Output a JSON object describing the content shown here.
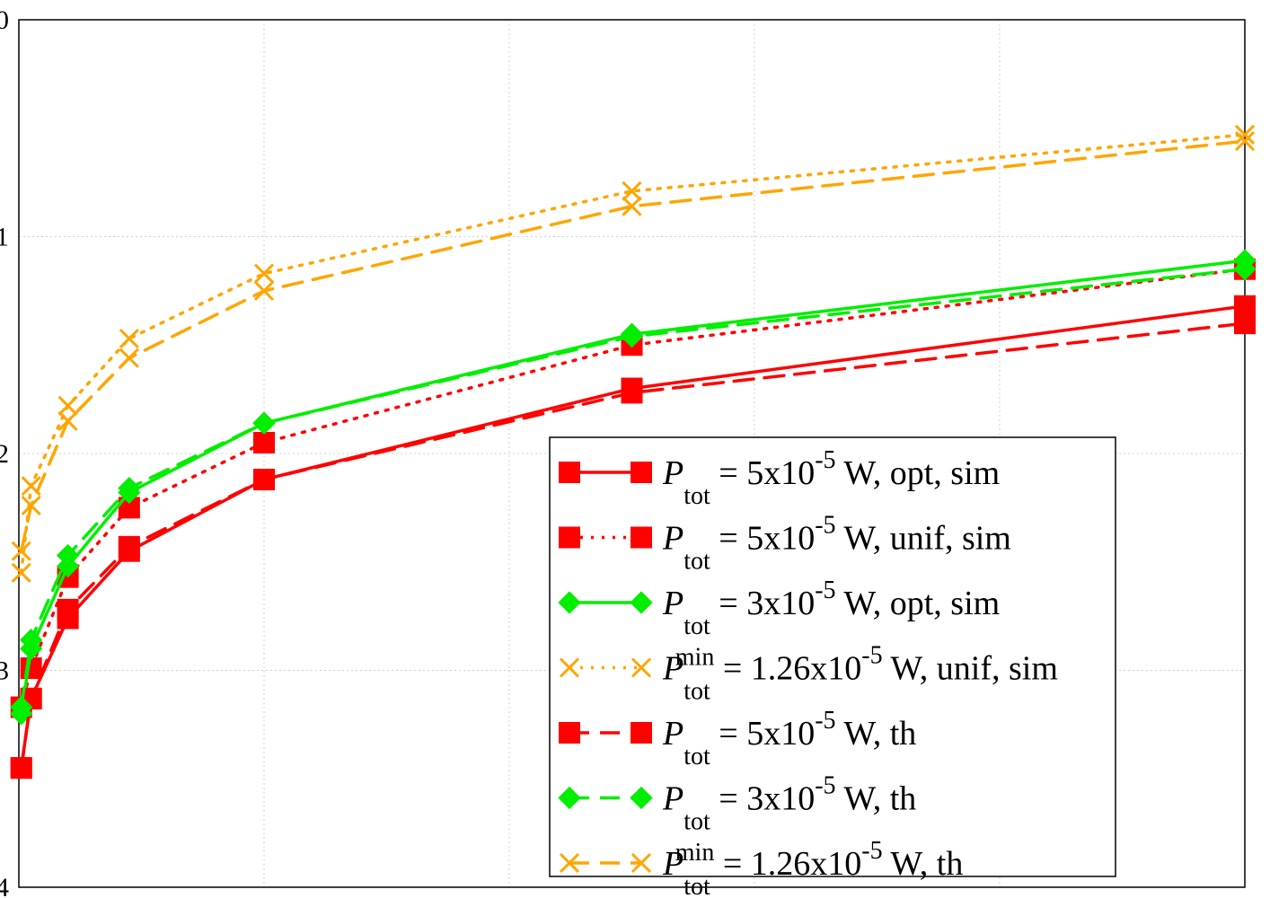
{
  "chart_data": {
    "type": "line",
    "title": "",
    "xlabel": "",
    "ylabel": "",
    "xlim": [
      0,
      100
    ],
    "ylim": [
      -4,
      0
    ],
    "grid": true,
    "legend_position": "bottom-right",
    "y_tick_labels": [
      "0",
      "1",
      "2",
      "3",
      "4"
    ],
    "y_tick_values": [
      0,
      -1,
      -2,
      -3,
      -4
    ],
    "x_ticks": [
      0,
      20,
      40,
      60,
      80,
      100
    ],
    "x": [
      0.2,
      1,
      4,
      9,
      20,
      50,
      100
    ],
    "series": [
      {
        "name": "P_tot = 5x10^-5 W, opt, sim",
        "legend_main": "P",
        "legend_sub": "tot",
        "legend_sup": "",
        "legend_eq": " = 5x10",
        "legend_exp": "-5",
        "legend_tail": " W, opt, sim",
        "color": "#ff0000",
        "dash": "solid",
        "marker": "square",
        "values": [
          -3.45,
          -3.13,
          -2.76,
          -2.45,
          -2.12,
          -1.7,
          -1.32
        ]
      },
      {
        "name": "P_tot = 5x10^-5 W, unif, sim",
        "legend_main": "P",
        "legend_sub": "tot",
        "legend_sup": "",
        "legend_eq": " = 5x10",
        "legend_exp": "-5",
        "legend_tail": " W, unif, sim",
        "color": "#ff0000",
        "dash": "dotted",
        "marker": "square",
        "values": [
          -3.17,
          -2.99,
          -2.57,
          -2.25,
          -1.95,
          -1.5,
          -1.15
        ]
      },
      {
        "name": "P_tot = 3x10^-5 W, opt, sim",
        "legend_main": "P",
        "legend_sub": "tot",
        "legend_sup": "",
        "legend_eq": " = 3x10",
        "legend_exp": "-5",
        "legend_tail": " W, opt, sim",
        "color": "#00ee00",
        "dash": "solid",
        "marker": "diamond",
        "values": [
          -3.2,
          -2.9,
          -2.52,
          -2.18,
          -1.86,
          -1.45,
          -1.11
        ]
      },
      {
        "name": "P_tot^min = 1.26x10^-5 W, unif, sim",
        "legend_main": "P",
        "legend_sub": "tot",
        "legend_sup": "min",
        "legend_eq": " = 1.26x10",
        "legend_exp": "-5",
        "legend_tail": " W, unif, sim",
        "color": "#ffa500",
        "dash": "dotted",
        "marker": "x",
        "values": [
          -2.55,
          -2.15,
          -1.78,
          -1.47,
          -1.17,
          -0.79,
          -0.53
        ]
      },
      {
        "name": "P_tot = 5x10^-5 W, th",
        "legend_main": "P",
        "legend_sub": "tot",
        "legend_sup": "",
        "legend_eq": " = 5x10",
        "legend_exp": "-5",
        "legend_tail": " W, th",
        "color": "#ff0000",
        "dash": "dashed",
        "marker": "square",
        "values": [
          -3.45,
          -3.13,
          -2.72,
          -2.43,
          -2.12,
          -1.72,
          -1.4
        ]
      },
      {
        "name": "P_tot = 3x10^-5 W, th",
        "legend_main": "P",
        "legend_sub": "tot",
        "legend_sup": "",
        "legend_eq": " = 3x10",
        "legend_exp": "-5",
        "legend_tail": " W, th",
        "color": "#00ee00",
        "dash": "dashed",
        "marker": "diamond",
        "values": [
          -3.17,
          -2.86,
          -2.47,
          -2.16,
          -1.86,
          -1.46,
          -1.15
        ]
      },
      {
        "name": "P_tot^min = 1.26x10^-5 W, th",
        "legend_main": "P",
        "legend_sub": "tot",
        "legend_sup": "min",
        "legend_eq": " = 1.26x10",
        "legend_exp": "-5",
        "legend_tail": " W, th",
        "color": "#ffa500",
        "dash": "dashed",
        "marker": "x",
        "values": [
          -2.45,
          -2.24,
          -1.85,
          -1.56,
          -1.25,
          -0.86,
          -0.56
        ]
      }
    ]
  }
}
